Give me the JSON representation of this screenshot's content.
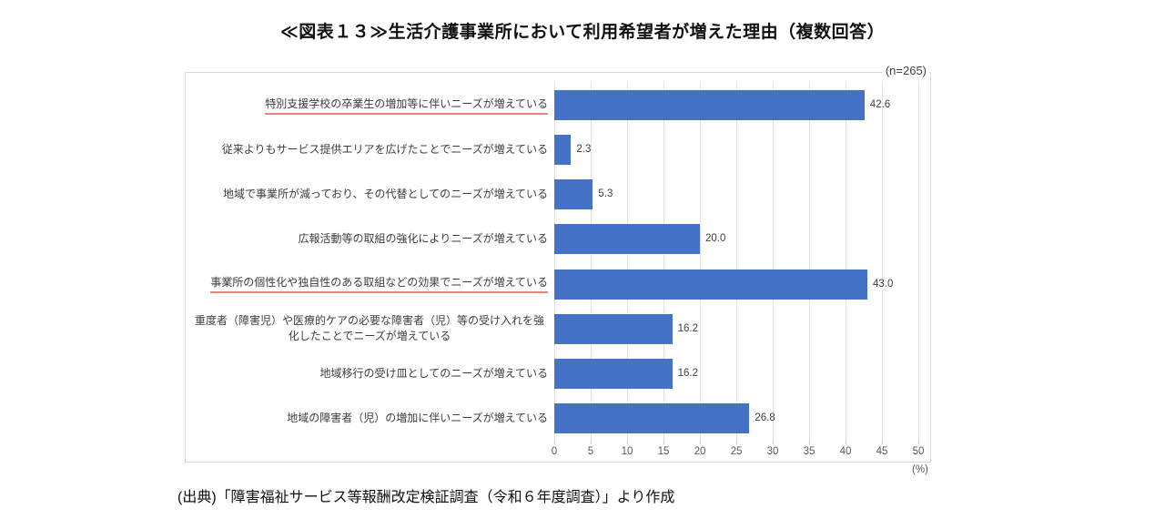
{
  "title": "≪図表１３≫生活介護事業所において利用希望者が増えた理由（複数回答）",
  "sample_label": "(n=265)",
  "source": "(出典)「障害福祉サービス等報酬改定検証調査（令和６年度調査）」より作成",
  "colors": {
    "bar": "#4472c4",
    "underline": "#e8837d",
    "grid": "#e4e4e4",
    "frame": "#d9d9d9",
    "axis_text": "#595959",
    "label_text": "#3d3d3d"
  },
  "chart_data": {
    "type": "bar",
    "orientation": "horizontal",
    "title": "≪図表１３≫生活介護事業所において利用希望者が増えた理由（複数回答）",
    "n": 265,
    "categories": [
      "特別支援学校の卒業生の増加等に伴いニーズが増えている",
      "従来よりもサービス提供エリアを広げたことでニーズが増えている",
      "地域で事業所が減っており、その代替としてのニーズが増えている",
      "広報活動等の取組の強化によりニーズが増えている",
      "事業所の個性化や独自性のある取組などの効果でニーズが増えている",
      "重度者（障害児）や医療的ケアの必要な障害者（児）等の受け入れを強化したことでニーズが増えている",
      "地域移行の受け皿としてのニーズが増えている",
      "地域の障害者（児）の増加に伴いニーズが増えている"
    ],
    "values": [
      42.6,
      2.3,
      5.3,
      20.0,
      43.0,
      16.2,
      16.2,
      26.8
    ],
    "value_labels": [
      "42.6",
      "2.3",
      "5.3",
      "20.0",
      "43.0",
      "16.2",
      "16.2",
      "26.8"
    ],
    "underlined": [
      true,
      false,
      false,
      false,
      true,
      false,
      false,
      false
    ],
    "xlim": [
      0,
      50
    ],
    "xticks": [
      0,
      5,
      10,
      15,
      20,
      25,
      30,
      35,
      40,
      45,
      50
    ],
    "x_unit": "(%)",
    "grid": true,
    "legend": false
  }
}
